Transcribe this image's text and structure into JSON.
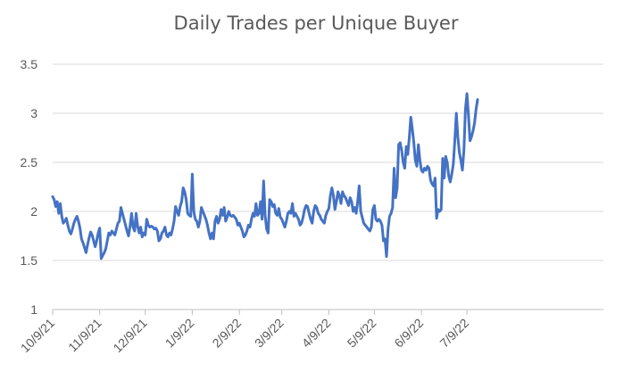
{
  "chart_data": {
    "type": "line",
    "title": "Daily Trades per Unique Buyer",
    "xlabel": "",
    "ylabel": "",
    "ylim": [
      1,
      3.5
    ],
    "yticks": [
      "1",
      "1.5",
      "2",
      "2.5",
      "3",
      "3.5"
    ],
    "x_tick_labels": [
      "10/9/21",
      "11/9/21",
      "12/9/21",
      "1/9/22",
      "2/9/22",
      "3/9/22",
      "4/9/22",
      "5/9/22",
      "6/9/22",
      "7/9/22"
    ],
    "x_start": "10/9/21",
    "grid": true,
    "legend": "none",
    "series": [
      {
        "color": "#4472C4",
        "points": [
          [
            "10/9/21",
            2.15
          ],
          [
            "10/10/21",
            2.12
          ],
          [
            "10/11/21",
            2.05
          ],
          [
            "10/12/21",
            2.1
          ],
          [
            "10/13/21",
            1.98
          ],
          [
            "10/14/21",
            2.08
          ],
          [
            "10/15/21",
            1.95
          ],
          [
            "10/16/21",
            1.88
          ],
          [
            "10/17/21",
            1.9
          ],
          [
            "10/18/21",
            1.93
          ],
          [
            "10/19/21",
            1.86
          ],
          [
            "10/20/21",
            1.8
          ],
          [
            "10/21/21",
            1.77
          ],
          [
            "10/22/21",
            1.82
          ],
          [
            "10/23/21",
            1.88
          ],
          [
            "10/24/21",
            1.92
          ],
          [
            "10/25/21",
            1.95
          ],
          [
            "10/26/21",
            1.9
          ],
          [
            "10/27/21",
            1.83
          ],
          [
            "10/28/21",
            1.72
          ],
          [
            "10/29/21",
            1.68
          ],
          [
            "10/30/21",
            1.63
          ],
          [
            "10/31/21",
            1.58
          ],
          [
            "11/1/21",
            1.66
          ],
          [
            "11/2/21",
            1.73
          ],
          [
            "11/3/21",
            1.79
          ],
          [
            "11/4/21",
            1.76
          ],
          [
            "11/5/21",
            1.7
          ],
          [
            "11/6/21",
            1.64
          ],
          [
            "11/7/21",
            1.7
          ],
          [
            "11/8/21",
            1.78
          ],
          [
            "11/9/21",
            1.83
          ],
          [
            "11/10/21",
            1.52
          ],
          [
            "11/11/21",
            1.55
          ],
          [
            "11/12/21",
            1.58
          ],
          [
            "11/13/21",
            1.62
          ],
          [
            "11/14/21",
            1.7
          ],
          [
            "11/15/21",
            1.78
          ],
          [
            "11/16/21",
            1.76
          ],
          [
            "11/17/21",
            1.8
          ],
          [
            "11/18/21",
            1.78
          ],
          [
            "11/19/21",
            1.76
          ],
          [
            "11/20/21",
            1.82
          ],
          [
            "11/21/21",
            1.88
          ],
          [
            "11/22/21",
            1.9
          ],
          [
            "11/23/21",
            2.04
          ],
          [
            "11/24/21",
            1.98
          ],
          [
            "11/25/21",
            1.92
          ],
          [
            "11/26/21",
            1.86
          ],
          [
            "11/27/21",
            1.8
          ],
          [
            "11/28/21",
            1.75
          ],
          [
            "11/29/21",
            1.85
          ],
          [
            "11/30/21",
            1.98
          ],
          [
            "12/1/21",
            1.84
          ],
          [
            "12/2/21",
            1.8
          ],
          [
            "12/3/21",
            1.98
          ],
          [
            "12/4/21",
            1.85
          ],
          [
            "12/5/21",
            1.78
          ],
          [
            "12/6/21",
            1.84
          ],
          [
            "12/7/21",
            1.74
          ],
          [
            "12/8/21",
            1.78
          ],
          [
            "12/9/21",
            1.76
          ],
          [
            "12/10/21",
            1.92
          ],
          [
            "12/11/21",
            1.86
          ],
          [
            "12/12/21",
            1.84
          ],
          [
            "12/13/21",
            1.85
          ],
          [
            "12/14/21",
            1.84
          ],
          [
            "12/15/21",
            1.82
          ],
          [
            "12/16/21",
            1.83
          ],
          [
            "12/17/21",
            1.8
          ],
          [
            "12/18/21",
            1.7
          ],
          [
            "12/19/21",
            1.72
          ],
          [
            "12/20/21",
            1.78
          ],
          [
            "12/21/21",
            1.8
          ],
          [
            "12/22/21",
            1.84
          ],
          [
            "12/23/21",
            1.76
          ],
          [
            "12/24/21",
            1.74
          ],
          [
            "12/25/21",
            1.78
          ],
          [
            "12/26/21",
            1.76
          ],
          [
            "12/27/21",
            1.82
          ],
          [
            "12/28/21",
            1.9
          ],
          [
            "12/29/21",
            2.05
          ],
          [
            "12/30/21",
            2.0
          ],
          [
            "12/31/21",
            1.96
          ],
          [
            "1/1/22",
            2.05
          ],
          [
            "1/2/22",
            2.1
          ],
          [
            "1/3/22",
            2.24
          ],
          [
            "1/4/22",
            2.2
          ],
          [
            "1/5/22",
            2.12
          ],
          [
            "1/6/22",
            1.98
          ],
          [
            "1/7/22",
            1.96
          ],
          [
            "1/8/22",
            1.95
          ],
          [
            "1/9/22",
            2.38
          ],
          [
            "1/10/22",
            2.0
          ],
          [
            "1/11/22",
            1.92
          ],
          [
            "1/12/22",
            1.9
          ],
          [
            "1/13/22",
            1.84
          ],
          [
            "1/14/22",
            1.9
          ],
          [
            "1/15/22",
            2.04
          ],
          [
            "1/16/22",
            2.0
          ],
          [
            "1/17/22",
            1.96
          ],
          [
            "1/18/22",
            1.92
          ],
          [
            "1/19/22",
            1.86
          ],
          [
            "1/20/22",
            1.78
          ],
          [
            "1/21/22",
            1.72
          ],
          [
            "1/22/22",
            1.78
          ],
          [
            "1/23/22",
            1.72
          ],
          [
            "1/24/22",
            1.9
          ],
          [
            "1/25/22",
            1.95
          ],
          [
            "1/26/22",
            1.88
          ],
          [
            "1/27/22",
            1.92
          ],
          [
            "1/28/22",
            2.02
          ],
          [
            "1/29/22",
            1.96
          ],
          [
            "1/30/22",
            2.04
          ],
          [
            "1/31/22",
            1.9
          ],
          [
            "2/1/22",
            1.94
          ],
          [
            "2/2/22",
            2.0
          ],
          [
            "2/3/22",
            1.96
          ],
          [
            "2/4/22",
            1.95
          ],
          [
            "2/5/22",
            1.96
          ],
          [
            "2/6/22",
            1.94
          ],
          [
            "2/7/22",
            1.92
          ],
          [
            "2/8/22",
            1.86
          ],
          [
            "2/9/22",
            1.88
          ],
          [
            "2/10/22",
            1.84
          ],
          [
            "2/11/22",
            1.8
          ],
          [
            "2/12/22",
            1.74
          ],
          [
            "2/13/22",
            1.76
          ],
          [
            "2/14/22",
            1.8
          ],
          [
            "2/15/22",
            1.86
          ],
          [
            "2/16/22",
            1.84
          ],
          [
            "2/17/22",
            1.92
          ],
          [
            "2/18/22",
            1.98
          ],
          [
            "2/19/22",
            1.95
          ],
          [
            "2/20/22",
            2.08
          ],
          [
            "2/21/22",
            1.96
          ],
          [
            "2/22/22",
            1.98
          ],
          [
            "2/23/22",
            2.1
          ],
          [
            "2/24/22",
            1.92
          ],
          [
            "2/25/22",
            2.31
          ],
          [
            "2/26/22",
            1.96
          ],
          [
            "2/27/22",
            1.82
          ],
          [
            "2/28/22",
            1.78
          ],
          [
            "3/1/22",
            2.12
          ],
          [
            "3/2/22",
            2.1
          ],
          [
            "3/3/22",
            2.05
          ],
          [
            "3/4/22",
            2.07
          ],
          [
            "3/5/22",
            1.98
          ],
          [
            "3/6/22",
            1.96
          ],
          [
            "3/7/22",
            2.03
          ],
          [
            "3/8/22",
            1.94
          ],
          [
            "3/9/22",
            1.92
          ],
          [
            "3/10/22",
            1.88
          ],
          [
            "3/11/22",
            1.84
          ],
          [
            "3/12/22",
            1.9
          ],
          [
            "3/13/22",
            1.98
          ],
          [
            "3/14/22",
            2.0
          ],
          [
            "3/15/22",
            1.98
          ],
          [
            "3/16/22",
            2.08
          ],
          [
            "3/17/22",
            1.95
          ],
          [
            "3/18/22",
            1.98
          ],
          [
            "3/19/22",
            1.95
          ],
          [
            "3/20/22",
            1.92
          ],
          [
            "3/21/22",
            1.86
          ],
          [
            "3/22/22",
            1.88
          ],
          [
            "3/23/22",
            1.94
          ],
          [
            "3/24/22",
            2.02
          ],
          [
            "3/25/22",
            2.06
          ],
          [
            "3/26/22",
            2.05
          ],
          [
            "3/27/22",
            1.98
          ],
          [
            "3/28/22",
            1.92
          ],
          [
            "3/29/22",
            1.88
          ],
          [
            "3/30/22",
            2.0
          ],
          [
            "3/31/22",
            2.06
          ],
          [
            "4/1/22",
            2.04
          ],
          [
            "4/2/22",
            1.98
          ],
          [
            "4/3/22",
            1.96
          ],
          [
            "4/4/22",
            1.92
          ],
          [
            "4/5/22",
            1.9
          ],
          [
            "4/6/22",
            1.88
          ],
          [
            "4/7/22",
            1.96
          ],
          [
            "4/8/22",
            2.0
          ],
          [
            "4/9/22",
            2.03
          ],
          [
            "4/10/22",
            2.16
          ],
          [
            "4/11/22",
            2.24
          ],
          [
            "4/12/22",
            2.16
          ],
          [
            "4/13/22",
            2.02
          ],
          [
            "4/14/22",
            2.1
          ],
          [
            "4/15/22",
            2.2
          ],
          [
            "4/16/22",
            2.16
          ],
          [
            "4/17/22",
            2.08
          ],
          [
            "4/18/22",
            2.2
          ],
          [
            "4/19/22",
            2.16
          ],
          [
            "4/20/22",
            2.14
          ],
          [
            "4/21/22",
            2.1
          ],
          [
            "4/22/22",
            2.06
          ],
          [
            "4/23/22",
            2.14
          ],
          [
            "4/24/22",
            2.1
          ],
          [
            "4/25/22",
            2.0
          ],
          [
            "4/26/22",
            2.04
          ],
          [
            "4/27/22",
            1.98
          ],
          [
            "4/28/22",
            2.1
          ],
          [
            "4/29/22",
            2.26
          ],
          [
            "4/30/22",
            2.0
          ],
          [
            "5/1/22",
            1.94
          ],
          [
            "5/2/22",
            1.88
          ],
          [
            "5/3/22",
            1.86
          ],
          [
            "5/4/22",
            1.84
          ],
          [
            "5/5/22",
            1.82
          ],
          [
            "5/6/22",
            1.8
          ],
          [
            "5/7/22",
            1.84
          ],
          [
            "5/8/22",
            2.02
          ],
          [
            "5/9/22",
            2.06
          ],
          [
            "5/10/22",
            1.92
          ],
          [
            "5/11/22",
            1.9
          ],
          [
            "5/12/22",
            1.92
          ],
          [
            "5/13/22",
            1.9
          ],
          [
            "5/14/22",
            1.86
          ],
          [
            "5/15/22",
            1.7
          ],
          [
            "5/16/22",
            1.72
          ],
          [
            "5/17/22",
            1.54
          ],
          [
            "5/18/22",
            1.82
          ],
          [
            "5/19/22",
            1.95
          ],
          [
            "5/20/22",
            1.98
          ],
          [
            "5/21/22",
            2.04
          ],
          [
            "5/22/22",
            2.44
          ],
          [
            "5/23/22",
            2.14
          ],
          [
            "5/24/22",
            2.24
          ],
          [
            "5/25/22",
            2.68
          ],
          [
            "5/26/22",
            2.7
          ],
          [
            "5/27/22",
            2.62
          ],
          [
            "5/28/22",
            2.5
          ],
          [
            "5/29/22",
            2.44
          ],
          [
            "5/30/22",
            2.66
          ],
          [
            "5/31/22",
            2.58
          ],
          [
            "6/1/22",
            2.75
          ],
          [
            "6/2/22",
            2.96
          ],
          [
            "6/3/22",
            2.84
          ],
          [
            "6/4/22",
            2.7
          ],
          [
            "6/5/22",
            2.52
          ],
          [
            "6/6/22",
            2.46
          ],
          [
            "6/7/22",
            2.68
          ],
          [
            "6/8/22",
            2.52
          ],
          [
            "6/9/22",
            2.42
          ],
          [
            "6/10/22",
            2.4
          ],
          [
            "6/11/22",
            2.44
          ],
          [
            "6/12/22",
            2.42
          ],
          [
            "6/13/22",
            2.46
          ],
          [
            "6/14/22",
            2.44
          ],
          [
            "6/15/22",
            2.32
          ],
          [
            "6/16/22",
            2.28
          ],
          [
            "6/17/22",
            2.26
          ],
          [
            "6/18/22",
            2.34
          ],
          [
            "6/19/22",
            1.93
          ],
          [
            "6/20/22",
            2.02
          ],
          [
            "6/21/22",
            2.0
          ],
          [
            "6/22/22",
            2.02
          ],
          [
            "6/23/22",
            2.54
          ],
          [
            "6/24/22",
            2.34
          ],
          [
            "6/25/22",
            2.56
          ],
          [
            "6/26/22",
            2.5
          ],
          [
            "6/27/22",
            2.36
          ],
          [
            "6/28/22",
            2.3
          ],
          [
            "6/29/22",
            2.38
          ],
          [
            "6/30/22",
            2.48
          ],
          [
            "7/1/22",
            2.72
          ],
          [
            "7/2/22",
            3.0
          ],
          [
            "7/3/22",
            2.76
          ],
          [
            "7/4/22",
            2.6
          ],
          [
            "7/5/22",
            2.52
          ],
          [
            "7/6/22",
            2.42
          ],
          [
            "7/7/22",
            2.62
          ],
          [
            "7/8/22",
            3.04
          ],
          [
            "7/9/22",
            3.2
          ],
          [
            "7/10/22",
            2.98
          ],
          [
            "7/11/22",
            2.72
          ],
          [
            "7/12/22",
            2.76
          ],
          [
            "7/13/22",
            2.82
          ],
          [
            "7/14/22",
            2.9
          ],
          [
            "7/15/22",
            3.04
          ],
          [
            "7/16/22",
            3.14
          ]
        ]
      }
    ]
  }
}
